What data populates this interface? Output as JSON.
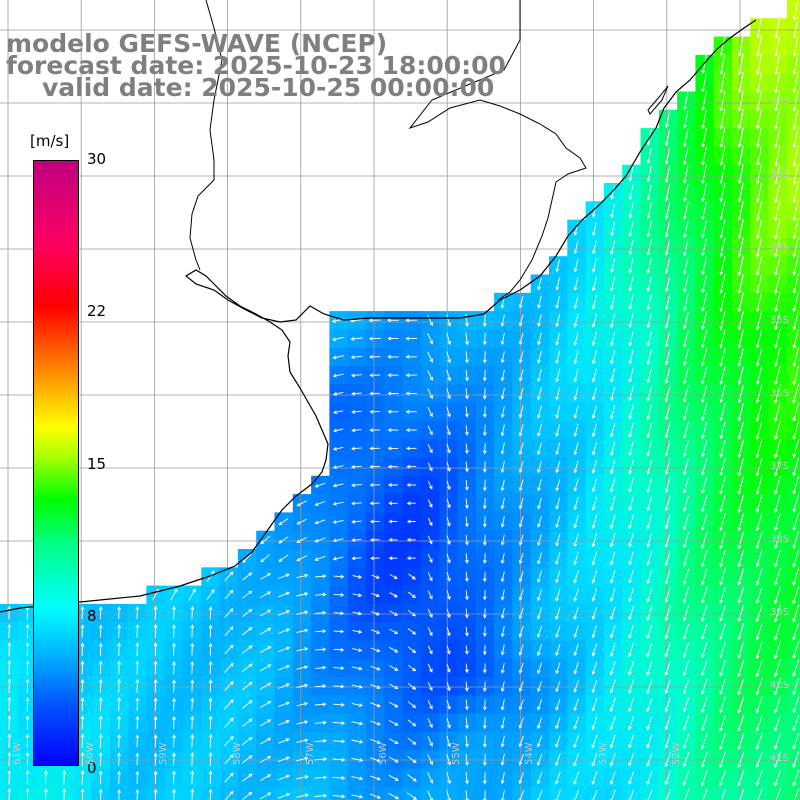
{
  "title": {
    "model": "modelo GEFS-WAVE (NCEP)",
    "forecast": "forecast date: 2025-10-23 18:00:00",
    "valid": "valid date: 2025-10-25 00:00:00"
  },
  "colorbar": {
    "unit": "[m/s]",
    "min": 0,
    "max": 30,
    "ticks": [
      {
        "value": 30,
        "label": "30"
      },
      {
        "value": 22,
        "label": "22"
      },
      {
        "value": 15,
        "label": "15"
      },
      {
        "value": 8,
        "label": "8"
      },
      {
        "value": 0,
        "label": "0"
      }
    ],
    "colors": [
      "#0000ff",
      "#0055ff",
      "#00b0ff",
      "#00ffff",
      "#00ff80",
      "#00ff00",
      "#a8ff00",
      "#ffff00",
      "#ff8000",
      "#ff0000",
      "#ff0060",
      "#c00080"
    ]
  },
  "map": {
    "lon_range": [
      -62,
      -51
    ],
    "lat_range": [
      -31.2,
      -41.8
    ],
    "lat_labels": [
      "32S",
      "33S",
      "34S",
      "35S",
      "36S",
      "37S",
      "38S",
      "39S",
      "40S",
      "41S"
    ],
    "lon_labels": [
      "61W",
      "60W",
      "59W",
      "58W",
      "57W",
      "56W",
      "55W",
      "54W",
      "53W",
      "52W"
    ],
    "land_color": "#ffffff",
    "coast_color": "#000000",
    "grid_color": "#a0a0a0",
    "variable": "10 m wind speed with direction arrows"
  }
}
